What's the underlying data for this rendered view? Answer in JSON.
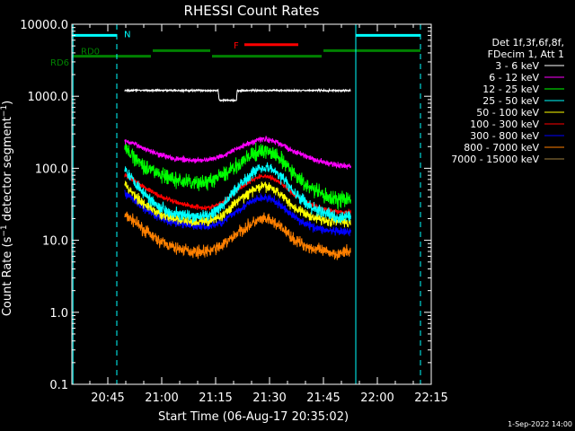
{
  "chart_data": {
    "type": "line",
    "title": "RHESSI Count Rates",
    "xlabel": "Start Time (06-Aug-17 20:35:02)",
    "ylabel": "Count Rate (s⁻¹ detector segment⁻¹)",
    "ylabel_main": "Count Rate (s",
    "ylabel_sup1": "−1",
    "ylabel_mid": " detector segment",
    "ylabel_sup2": "−1",
    "ylabel_end": ")",
    "x_unit": "minutes since 20:35:02",
    "xlim": [
      0,
      100
    ],
    "ylim": [
      0.1,
      10000
    ],
    "yscale": "log",
    "x_ticks": [
      {
        "v": 10,
        "label": "20:45"
      },
      {
        "v": 25,
        "label": "21:00"
      },
      {
        "v": 40,
        "label": "21:15"
      },
      {
        "v": 55,
        "label": "21:30"
      },
      {
        "v": 70,
        "label": "21:45"
      },
      {
        "v": 85,
        "label": "22:00"
      },
      {
        "v": 100,
        "label": "22:15"
      }
    ],
    "y_ticks": [
      {
        "v": 0.1,
        "label": "0.1"
      },
      {
        "v": 1,
        "label": "1.0"
      },
      {
        "v": 10,
        "label": "10.0"
      },
      {
        "v": 100,
        "label": "100.0"
      },
      {
        "v": 1000,
        "label": "1000.0"
      },
      {
        "v": 10000,
        "label": "10000.0"
      }
    ],
    "legend": {
      "placement": "right",
      "header": [
        "Det 1f,3f,6f,8f,",
        "FDecim 1, Att 1"
      ]
    },
    "series": [
      {
        "name": "3 - 6 keV",
        "color": "#ffffff",
        "noise": 0.01,
        "points": [
          [
            14.7,
            1200
          ],
          [
            20,
            1210
          ],
          [
            30,
            1200
          ],
          [
            38,
            1205
          ],
          [
            40.7,
            1200
          ],
          [
            41,
            880
          ],
          [
            45.8,
            880
          ],
          [
            46,
            1200
          ],
          [
            55,
            1205
          ],
          [
            65,
            1200
          ],
          [
            76,
            1200
          ],
          [
            77.6,
            1200
          ]
        ]
      },
      {
        "name": "6 - 12 keV",
        "color": "#ff00ff",
        "noise": 0.035,
        "points": [
          [
            14.7,
            240
          ],
          [
            17,
            220
          ],
          [
            20,
            190
          ],
          [
            24,
            160
          ],
          [
            28,
            138
          ],
          [
            33,
            128
          ],
          [
            38,
            130
          ],
          [
            42,
            150
          ],
          [
            46,
            190
          ],
          [
            50,
            230
          ],
          [
            52,
            250
          ],
          [
            54,
            255
          ],
          [
            56,
            240
          ],
          [
            59,
            205
          ],
          [
            62,
            170
          ],
          [
            66,
            140
          ],
          [
            70,
            120
          ],
          [
            74,
            110
          ],
          [
            77.6,
            108
          ]
        ]
      },
      {
        "name": "12 - 25 keV",
        "color": "#00ff00",
        "noise": 0.09,
        "points": [
          [
            14.7,
            190
          ],
          [
            17,
            150
          ],
          [
            20,
            110
          ],
          [
            24,
            85
          ],
          [
            28,
            70
          ],
          [
            33,
            62
          ],
          [
            38,
            64
          ],
          [
            42,
            80
          ],
          [
            46,
            110
          ],
          [
            50,
            150
          ],
          [
            52,
            170
          ],
          [
            54,
            175
          ],
          [
            56,
            160
          ],
          [
            59,
            120
          ],
          [
            62,
            80
          ],
          [
            66,
            55
          ],
          [
            70,
            42
          ],
          [
            74,
            36
          ],
          [
            77.6,
            38
          ]
        ]
      },
      {
        "name": "25 - 50 keV",
        "color": "#00ffff",
        "noise": 0.07,
        "points": [
          [
            14.7,
            100
          ],
          [
            17,
            70
          ],
          [
            20,
            45
          ],
          [
            24,
            30
          ],
          [
            28,
            24
          ],
          [
            33,
            21
          ],
          [
            38,
            22
          ],
          [
            42,
            30
          ],
          [
            46,
            55
          ],
          [
            50,
            85
          ],
          [
            52,
            100
          ],
          [
            54,
            105
          ],
          [
            56,
            95
          ],
          [
            59,
            70
          ],
          [
            62,
            45
          ],
          [
            66,
            30
          ],
          [
            70,
            24
          ],
          [
            74,
            21
          ],
          [
            77.6,
            21
          ]
        ]
      },
      {
        "name": "50 - 100 keV",
        "color": "#ffff00",
        "noise": 0.06,
        "points": [
          [
            14.7,
            60
          ],
          [
            17,
            45
          ],
          [
            20,
            32
          ],
          [
            24,
            24
          ],
          [
            28,
            20
          ],
          [
            33,
            18
          ],
          [
            38,
            18.5
          ],
          [
            42,
            22
          ],
          [
            46,
            35
          ],
          [
            50,
            48
          ],
          [
            52,
            54
          ],
          [
            54,
            56
          ],
          [
            56,
            52
          ],
          [
            59,
            40
          ],
          [
            62,
            28
          ],
          [
            66,
            22
          ],
          [
            70,
            19
          ],
          [
            74,
            18
          ],
          [
            77.6,
            18
          ]
        ]
      },
      {
        "name": "100 - 300 keV",
        "color": "#ff0000",
        "noise": 0.03,
        "points": [
          [
            14.7,
            80
          ],
          [
            17,
            70
          ],
          [
            20,
            55
          ],
          [
            24,
            42
          ],
          [
            28,
            35
          ],
          [
            33,
            30
          ],
          [
            38,
            28
          ],
          [
            42,
            33
          ],
          [
            46,
            50
          ],
          [
            50,
            68
          ],
          [
            52,
            76
          ],
          [
            54,
            78
          ],
          [
            56,
            72
          ],
          [
            59,
            58
          ],
          [
            62,
            42
          ],
          [
            66,
            32
          ],
          [
            70,
            27
          ],
          [
            74,
            25
          ],
          [
            77.6,
            25
          ]
        ]
      },
      {
        "name": "300 - 800 keV",
        "color": "#0000ff",
        "noise": 0.05,
        "points": [
          [
            14.7,
            45
          ],
          [
            17,
            38
          ],
          [
            20,
            28
          ],
          [
            24,
            21
          ],
          [
            28,
            18
          ],
          [
            33,
            16
          ],
          [
            38,
            15.5
          ],
          [
            42,
            18
          ],
          [
            46,
            26
          ],
          [
            50,
            34
          ],
          [
            52,
            38
          ],
          [
            54,
            39
          ],
          [
            56,
            36
          ],
          [
            59,
            28
          ],
          [
            62,
            21
          ],
          [
            66,
            16
          ],
          [
            70,
            14
          ],
          [
            74,
            13
          ],
          [
            77.6,
            13
          ]
        ]
      },
      {
        "name": "800 - 7000 keV",
        "color": "#ff8000",
        "noise": 0.07,
        "points": [
          [
            14.7,
            22
          ],
          [
            17,
            19
          ],
          [
            20,
            14
          ],
          [
            24,
            10
          ],
          [
            28,
            8
          ],
          [
            33,
            7
          ],
          [
            38,
            7
          ],
          [
            42,
            8.5
          ],
          [
            46,
            12.5
          ],
          [
            50,
            17
          ],
          [
            52,
            19
          ],
          [
            54,
            19.5
          ],
          [
            56,
            18
          ],
          [
            59,
            14
          ],
          [
            62,
            10
          ],
          [
            66,
            8
          ],
          [
            70,
            7
          ],
          [
            74,
            6.5
          ],
          [
            77.6,
            7
          ]
        ]
      },
      {
        "name": "7000 - 15000 keV",
        "color": "#a08040",
        "noise": 0,
        "points": []
      }
    ],
    "annotations": [
      {
        "label": "N",
        "color": "#00ffff",
        "segments": [
          [
            0,
            12.5,
            7000
          ],
          [
            79,
            97,
            7000
          ]
        ]
      },
      {
        "label": "F",
        "color": "#ff0000",
        "segments": [
          [
            48,
            63,
            5200
          ]
        ]
      },
      {
        "label": "RD0",
        "color": "#008000",
        "segments": [
          [
            0,
            22,
            3600
          ],
          [
            22.5,
            38.5,
            4300
          ],
          [
            39,
            69.5,
            3600
          ],
          [
            70,
            97,
            4300
          ]
        ]
      },
      {
        "label": "RD6",
        "color": "#008000",
        "segments": []
      }
    ],
    "vertical_lines": [
      {
        "x": 0.3,
        "color": "#00ffff",
        "style": "solid"
      },
      {
        "x": 12.5,
        "color": "#00ffff",
        "style": "dashed"
      },
      {
        "x": 79,
        "color": "#00ffff",
        "style": "solid"
      },
      {
        "x": 97,
        "color": "#00ffff",
        "style": "dashed"
      }
    ]
  },
  "footer": {
    "timestamp": "1-Sep-2022 14:00"
  }
}
